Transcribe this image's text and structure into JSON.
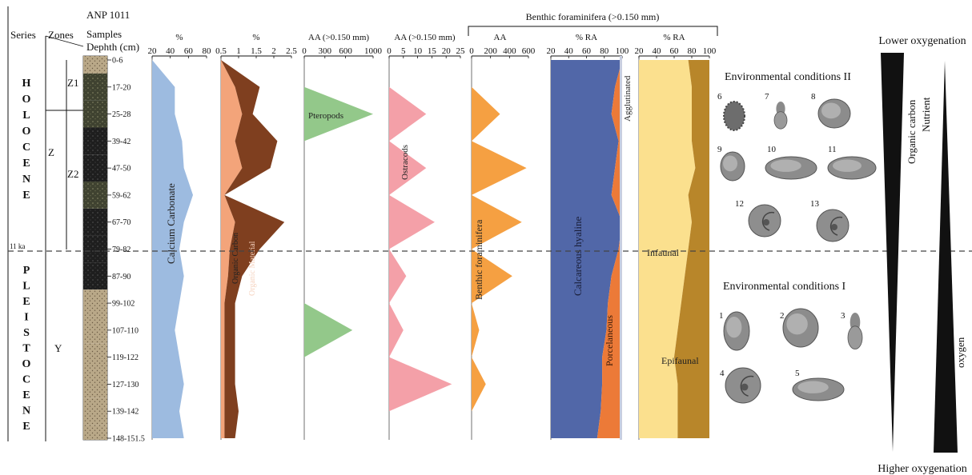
{
  "chart_data": {
    "type": "area",
    "header": "Benthic foraminifera (>0.150 mm)",
    "left_headers": {
      "series": "Series",
      "zones": "Zones",
      "core": "ANP 1011",
      "samples": "Samples",
      "depth": "Dephth (cm)"
    },
    "series_labels": [
      "HOLOCENE",
      "PLEISTOCENE"
    ],
    "zone_labels": {
      "Z": "Z",
      "Z1": "Z1",
      "Z2": "Z2",
      "Y": "Y"
    },
    "age_marker": "11 ka",
    "samples": [
      "0-6",
      "17-20",
      "25-28",
      "39-42",
      "47-50",
      "59-62",
      "67-70",
      "79-82",
      "87-90",
      "99-102",
      "107-110",
      "119-122",
      "127-130",
      "139-142",
      "148-151.5"
    ],
    "panels": [
      {
        "unit": "%",
        "ticks": [
          "20",
          "40",
          "60",
          "80"
        ],
        "xlim": [
          20,
          80
        ],
        "series": [
          {
            "name": "Calcium Carbonate",
            "color": "#9dbbe0",
            "values": [
              20,
              45,
              45,
              53,
              55,
              65,
              55,
              50,
              55,
              50,
              45,
              50,
              55,
              50,
              55
            ]
          }
        ]
      },
      {
        "unit": "%",
        "ticks": [
          "0.5",
          "1",
          "1.5",
          "2",
          "2.5"
        ],
        "xlim": [
          0.5,
          2.5
        ],
        "series": [
          {
            "name": "Organic Carbon",
            "color": "#f3a47a",
            "values": [
              0.5,
              0.9,
              1.1,
              0.9,
              1.1,
              0.6,
              0.9,
              0.75,
              0.7,
              0.6,
              0.6,
              0.6,
              0.6,
              0.6,
              0.6
            ]
          },
          {
            "name": "Organic Material",
            "color": "#7f3f1f",
            "values": [
              0.5,
              1.6,
              1.4,
              2.1,
              1.9,
              0.6,
              2.3,
              1.6,
              1.1,
              0.9,
              0.9,
              0.9,
              0.9,
              1.0,
              0.9
            ]
          }
        ]
      },
      {
        "unit": "AA (>0.150 mm)",
        "ticks": [
          "0",
          "300",
          "600",
          "1000"
        ],
        "xlim": [
          0,
          1000
        ],
        "series": [
          {
            "name": "Pteropods",
            "color": "#93c88a",
            "values": [
              0,
              0,
              1000,
              0,
              0,
              0,
              0,
              0,
              0,
              0,
              700,
              0,
              0,
              0,
              0
            ]
          }
        ]
      },
      {
        "unit": "AA (>0.150 mm)",
        "ticks": [
          "0",
          "5",
          "10",
          "15",
          "20",
          "25"
        ],
        "xlim": [
          0,
          25
        ],
        "series": [
          {
            "name": "Ostracods",
            "color": "#f4a0a8",
            "values": [
              0,
              0,
              13,
              0,
              13,
              0,
              16,
              0,
              6,
              0,
              5,
              0,
              22,
              0,
              0
            ]
          }
        ]
      },
      {
        "unit": "AA",
        "ticks": [
          "0",
          "200",
          "400",
          "600"
        ],
        "xlim": [
          0,
          600
        ],
        "series": [
          {
            "name": "Benthic foraminifera",
            "color": "#f5a042",
            "values": [
              0,
              0,
              300,
              0,
              580,
              0,
              530,
              0,
              430,
              0,
              80,
              0,
              150,
              0,
              0
            ]
          }
        ]
      },
      {
        "unit": "% RA",
        "ticks": [
          "20",
          "40",
          "60",
          "80",
          "100"
        ],
        "xlim": [
          20,
          100
        ],
        "series": [
          {
            "name": "Calcareous hyaline",
            "color": "#5167a8",
            "values": [
              100,
              90,
              85,
              95,
              90,
              85,
              100,
              95,
              85,
              80,
              78,
              72,
              72,
              70,
              65
            ]
          },
          {
            "name": "Porcelaneous",
            "color": "#ec7a38",
            "values": [
              0,
              10,
              15,
              5,
              10,
              15,
              0,
              5,
              15,
              20,
              22,
              28,
              28,
              30,
              35
            ]
          },
          {
            "name": "Agglutinated",
            "color": "#d0d6e6",
            "values": [
              0,
              0,
              0,
              0,
              0,
              0,
              0,
              0,
              0,
              0,
              0,
              0,
              0,
              0,
              0
            ]
          }
        ]
      },
      {
        "unit": "% RA",
        "ticks": [
          "20",
          "40",
          "60",
          "80",
          "100"
        ],
        "xlim": [
          20,
          100
        ],
        "series": [
          {
            "name": "Infaunal",
            "color": "#fbe08e",
            "values": [
              70,
              75,
              75,
              75,
              80,
              70,
              75,
              70,
              65,
              60,
              55,
              50,
              55,
              55,
              55
            ]
          },
          {
            "name": "Epifaunal",
            "color": "#b8862a",
            "values": [
              30,
              25,
              25,
              25,
              20,
              30,
              25,
              30,
              35,
              40,
              45,
              50,
              45,
              45,
              45
            ]
          }
        ]
      }
    ],
    "conditions": {
      "II": {
        "title": "Environmental conditions II",
        "nums": [
          "6",
          "7",
          "8",
          "9",
          "10",
          "11",
          "12",
          "13"
        ]
      },
      "I": {
        "title": "Environmental conditions I",
        "nums": [
          "1",
          "2",
          "3",
          "4",
          "5"
        ]
      }
    },
    "gradient": {
      "top": "Lower oxygenation",
      "bottom": "Higher oxygenation",
      "label1": "Organic carbon",
      "label2": "Nutrient",
      "label3": "oxygen"
    }
  }
}
